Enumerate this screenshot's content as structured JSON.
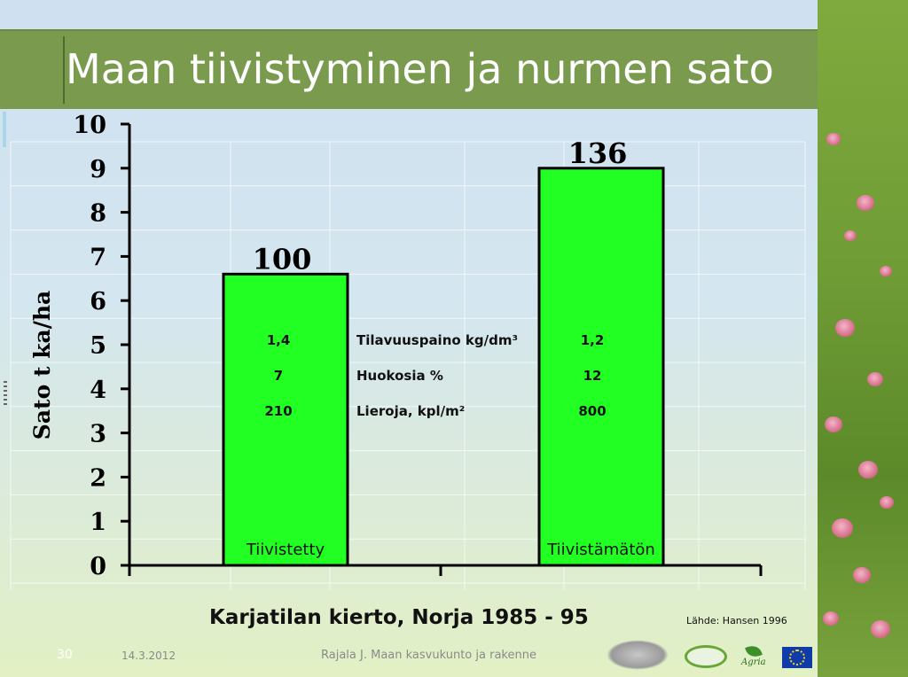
{
  "slide": {
    "title": "Maan tiivistyminen ja nurmen sato",
    "subtitle": "Karjatilan kierto, Norja 1985 - 95",
    "source": "Lähde: Hansen 1996",
    "page_number": "30",
    "date": "14.3.2012",
    "footer": "Rajala J. Maan kasvukunto ja rakenne",
    "logos": [
      "university-logo",
      "project-logo",
      "agria-logo",
      "eu-flag"
    ],
    "logo_text_agria": "Agria"
  },
  "chart_data": {
    "type": "bar",
    "title": "",
    "xlabel": "",
    "ylabel": "Sato t ka/ha",
    "ylim": [
      0,
      10
    ],
    "yticks": [
      "0",
      "1",
      "2",
      "3",
      "4",
      "5",
      "6",
      "7",
      "8",
      "9",
      "10"
    ],
    "categories": [
      "Tiivistetty",
      "Tiivistämätön"
    ],
    "values": [
      6.6,
      9.0
    ],
    "data_labels": [
      "100",
      "136"
    ],
    "bar_color": "#22ff22",
    "grid": true,
    "legend": "none",
    "table": {
      "rows": [
        {
          "label": "Tilavuuspaino kg/dm³",
          "values": [
            "1,4",
            "1,2"
          ]
        },
        {
          "label": "Huokosia %",
          "values": [
            "7",
            "12"
          ]
        },
        {
          "label": "Lieroja, kpl/m²",
          "values": [
            "210",
            "800"
          ]
        }
      ]
    }
  }
}
